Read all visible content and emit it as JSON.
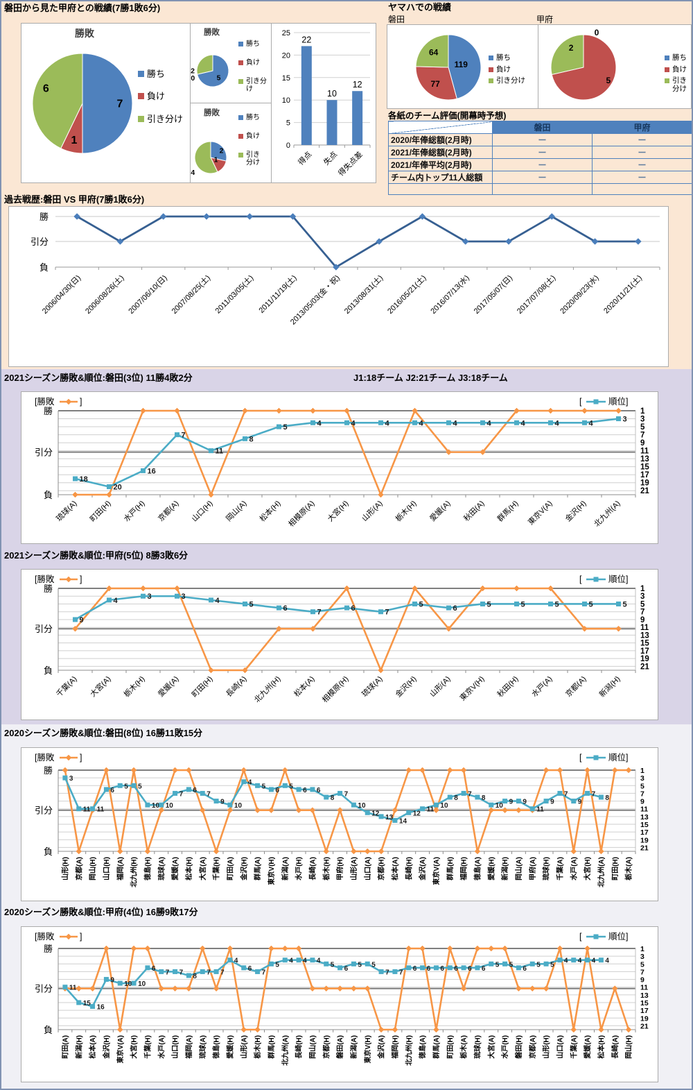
{
  "sections": {
    "h2h": {
      "title": "磐田から見た甲府との戦績(7勝1敗6分)"
    },
    "yamaha": {
      "title": "ヤマハでの戦績",
      "left_team": "磐田",
      "right_team": "甲府"
    },
    "eval_table": {
      "title": "各紙のチーム評価(開幕時予想)",
      "columns": [
        "磐田",
        "甲府"
      ],
      "rows": [
        {
          "label": "2020/年俸総額(2月時)",
          "values": [
            "ー",
            "ー"
          ]
        },
        {
          "label": "2021/年俸総額(2月時)",
          "values": [
            "ー",
            "ー"
          ]
        },
        {
          "label": "2021/年俸平均(2月時)",
          "values": [
            "ー",
            "ー"
          ]
        },
        {
          "label": "チーム内トップ11人総額",
          "values": [
            "ー",
            "ー"
          ]
        },
        {
          "label": "",
          "values": [
            "",
            ""
          ]
        }
      ]
    },
    "past": {
      "title": "過去戦歴:磐田 VS 甲府(7勝1敗6分)"
    },
    "iwata2021": {
      "title": "2021シーズン勝敗&順位:磐田(3位) 11勝4敗2分",
      "note": "J1:18チーム  J2:21チーム  J3:18チーム"
    },
    "kofu2021": {
      "title": "2021シーズン勝敗&順位:甲府(5位) 8勝3敗6分"
    },
    "iwata2020": {
      "title": "2020シーズン勝敗&順位:磐田(8位) 16勝11敗15分"
    },
    "kofu2020": {
      "title": "2020シーズン勝敗&順位:甲府(4位) 16勝9敗17分"
    }
  },
  "colors": {
    "win_blue": "#4F81BD",
    "loss_red": "#C0504D",
    "draw_green": "#9BBB59",
    "orange": "#F79646",
    "teal": "#4BACC6",
    "navy": "#376092",
    "navy_marker": "#4A7EBB",
    "peach_bg": "#FBE7D4",
    "lavender_bg": "#D9D4E7",
    "gray_bg": "#F0F0F5",
    "table_header": "#4F81BD"
  },
  "chart_data": [
    {
      "id": "h2h-pie-total",
      "type": "pie",
      "title": "勝敗",
      "slices": [
        {
          "label": "勝ち",
          "value": 7,
          "color": "#4F81BD"
        },
        {
          "label": "負け",
          "value": 1,
          "color": "#C0504D"
        },
        {
          "label": "引き分け",
          "value": 6,
          "color": "#9BBB59"
        }
      ]
    },
    {
      "id": "h2h-pie-home",
      "type": "pie",
      "title": "勝敗",
      "slices": [
        {
          "label": "勝ち",
          "value": 5,
          "color": "#4F81BD"
        },
        {
          "label": "負け",
          "value": 0,
          "color": "#C0504D"
        },
        {
          "label": "引き分け",
          "value": 2,
          "color": "#9BBB59"
        }
      ]
    },
    {
      "id": "h2h-pie-away",
      "type": "pie",
      "title": "勝敗",
      "slices": [
        {
          "label": "勝ち",
          "value": 2,
          "color": "#4F81BD"
        },
        {
          "label": "負け",
          "value": 1,
          "color": "#C0504D"
        },
        {
          "label": "引き分け",
          "value": 4,
          "color": "#9BBB59"
        }
      ]
    },
    {
      "id": "goals-bar",
      "type": "bar",
      "categories": [
        "得点",
        "失点",
        "得失点差"
      ],
      "values": [
        22,
        10,
        12
      ],
      "ylim": [
        0,
        25
      ],
      "ytick_step": 5,
      "bar_color": "#4F81BD"
    },
    {
      "id": "yamaha-iwata-pie",
      "type": "pie",
      "title": "",
      "slices": [
        {
          "label": "勝ち",
          "value": 119,
          "color": "#4F81BD"
        },
        {
          "label": "負け",
          "value": 77,
          "color": "#C0504D"
        },
        {
          "label": "引き分け",
          "value": 64,
          "color": "#9BBB59"
        }
      ]
    },
    {
      "id": "yamaha-kofu-pie",
      "type": "pie",
      "title": "",
      "slices": [
        {
          "label": "勝ち",
          "value": 0,
          "color": "#4F81BD"
        },
        {
          "label": "負け",
          "value": 5,
          "color": "#C0504D"
        },
        {
          "label": "引き分け",
          "value": 2,
          "color": "#9BBB59"
        }
      ]
    },
    {
      "id": "past-line",
      "type": "result_line",
      "y_labels": [
        "勝",
        "引分",
        "負"
      ],
      "categories": [
        "2006/04/30(日)",
        "2006/08/26(土)",
        "2007/06/10(日)",
        "2007/08/25(土)",
        "2011/03/05(土)",
        "2011/11/19(土)",
        "2013/05/03(金・祝)",
        "2013/08/31(土)",
        "2016/05/21(土)",
        "2016/07/13(水)",
        "2017/05/07(日)",
        "2017/07/08(土)",
        "2020/09/23(水)",
        "2020/11/21(土)"
      ],
      "results": [
        "W",
        "D",
        "W",
        "W",
        "W",
        "W",
        "L",
        "D",
        "W",
        "D",
        "D",
        "W",
        "D",
        "D"
      ]
    },
    {
      "id": "iwata-2021",
      "type": "combo",
      "legend": {
        "series": "勝敗",
        "rank": "順位"
      },
      "y_left": [
        "勝",
        "引分",
        "負"
      ],
      "rank_axis": {
        "min": 1,
        "max": 21,
        "tick_step": 2
      },
      "categories": [
        "琉球(A)",
        "町田(H)",
        "水戸(H)",
        "京都(A)",
        "山口(H)",
        "岡山(A)",
        "松本(H)",
        "相模原(A)",
        "大宮(H)",
        "山形(A)",
        "栃木(H)",
        "愛媛(A)",
        "秋田(A)",
        "群馬(H)",
        "東京V(A)",
        "金沢(H)",
        "北九州(A)"
      ],
      "results": [
        "L",
        "L",
        "W",
        "W",
        "L",
        "W",
        "W",
        "W",
        "W",
        "L",
        "W",
        "D",
        "D",
        "W",
        "W",
        "W",
        "W"
      ],
      "ranks": [
        18,
        20,
        16,
        7,
        11,
        8,
        5,
        4,
        4,
        4,
        4,
        4,
        4,
        4,
        4,
        4,
        3
      ]
    },
    {
      "id": "kofu-2021",
      "type": "combo",
      "legend": {
        "series": "勝敗",
        "rank": "順位"
      },
      "y_left": [
        "勝",
        "引分",
        "負"
      ],
      "rank_axis": {
        "min": 1,
        "max": 21,
        "tick_step": 2
      },
      "categories": [
        "千葉(A)",
        "大宮(A)",
        "栃木(H)",
        "愛媛(A)",
        "町田(H)",
        "長崎(A)",
        "北九州(H)",
        "松本(A)",
        "相模原(H)",
        "琉球(A)",
        "金沢(H)",
        "山形(A)",
        "東京V(H)",
        "秋田(H)",
        "水戸(A)",
        "京都(A)",
        "新潟(H)"
      ],
      "results": [
        "D",
        "W",
        "W",
        "W",
        "L",
        "L",
        "D",
        "D",
        "W",
        "L",
        "W",
        "D",
        "W",
        "W",
        "W",
        "D",
        "D"
      ],
      "ranks": [
        9,
        4,
        3,
        3,
        4,
        5,
        6,
        7,
        6,
        7,
        5,
        6,
        5,
        5,
        5,
        5,
        5
      ]
    },
    {
      "id": "iwata-2020",
      "type": "combo",
      "legend": {
        "series": "勝敗",
        "rank": "順位"
      },
      "y_left": [
        "勝",
        "引分",
        "負"
      ],
      "rank_axis": {
        "min": 1,
        "max": 21,
        "tick_step": 2
      },
      "categories": [
        "山形(H)",
        "京都(A)",
        "岡山(H)",
        "山口(H)",
        "福岡(A)",
        "北九州(H)",
        "徳島(H)",
        "琉球(A)",
        "愛媛(A)",
        "松本(H)",
        "大宮(A)",
        "千葉(H)",
        "町田(A)",
        "金沢(H)",
        "群馬(A)",
        "東京V(H)",
        "新潟(A)",
        "水戸(H)",
        "長崎(A)",
        "栃木(H)",
        "甲府(H)",
        "山形(A)",
        "山口(A)",
        "京都(H)",
        "松本(A)",
        "長崎(H)",
        "金沢(A)",
        "東京V(A)",
        "群馬(H)",
        "福岡(H)",
        "徳島(A)",
        "愛媛(H)",
        "新潟(H)",
        "岡山(A)",
        "甲府(A)",
        "琉球(H)",
        "千葉(A)",
        "水戸(A)",
        "大宮(H)",
        "北九州(A)",
        "町田(H)",
        "栃木(A)"
      ],
      "results": [
        "W",
        "L",
        "D",
        "W",
        "L",
        "W",
        "L",
        "D",
        "W",
        "W",
        "D",
        "L",
        "D",
        "W",
        "D",
        "D",
        "W",
        "D",
        "D",
        "L",
        "D",
        "L",
        "L",
        "L",
        "D",
        "W",
        "W",
        "D",
        "W",
        "W",
        "L",
        "D",
        "D",
        "D",
        "D",
        "W",
        "W",
        "L",
        "W",
        "L",
        "W",
        "W"
      ],
      "ranks": [
        3,
        11,
        11,
        6,
        5,
        5,
        10,
        10,
        7,
        6,
        7,
        9,
        10,
        4,
        5,
        6,
        5,
        6,
        6,
        8,
        7,
        10,
        12,
        13,
        14,
        12,
        11,
        10,
        8,
        7,
        8,
        10,
        9,
        9,
        11,
        9,
        7,
        9,
        7,
        8,
        null,
        null
      ]
    },
    {
      "id": "kofu-2020",
      "type": "combo",
      "legend": {
        "series": "勝敗",
        "rank": "順位"
      },
      "y_left": [
        "勝",
        "引分",
        "負"
      ],
      "rank_axis": {
        "min": 1,
        "max": 21,
        "tick_step": 2
      },
      "categories": [
        "町田(A)",
        "新潟(H)",
        "松本(A)",
        "金沢(H)",
        "東京V(A)",
        "大宮(H)",
        "千葉(H)",
        "水戸(A)",
        "山口(H)",
        "福岡(A)",
        "琉球(A)",
        "徳島(H)",
        "愛媛(H)",
        "山形(A)",
        "栃木(H)",
        "群馬(H)",
        "北九州(A)",
        "長崎(H)",
        "岡山(A)",
        "京都(H)",
        "磐田(A)",
        "新潟(A)",
        "東京V(H)",
        "金沢(A)",
        "福岡(H)",
        "北九州(H)",
        "徳島(A)",
        "群馬(A)",
        "町田(H)",
        "栃木(A)",
        "琉球(H)",
        "大宮(A)",
        "水戸(H)",
        "磐田(H)",
        "京都(A)",
        "山形(H)",
        "山口(A)",
        "千葉(A)",
        "愛媛(A)",
        "松本(H)",
        "長崎(A)",
        "岡山(H)"
      ],
      "results": [
        "D",
        "D",
        "D",
        "W",
        "L",
        "W",
        "W",
        "D",
        "D",
        "D",
        "W",
        "D",
        "W",
        "L",
        "L",
        "W",
        "W",
        "W",
        "D",
        "D",
        "D",
        "D",
        "D",
        "L",
        "L",
        "W",
        "W",
        "L",
        "W",
        "D",
        "W",
        "W",
        "W",
        "D",
        "D",
        "D",
        "W",
        "L",
        "W",
        "L",
        "D",
        "L"
      ],
      "ranks": [
        11,
        15,
        16,
        9,
        10,
        10,
        6,
        7,
        7,
        8,
        7,
        7,
        4,
        6,
        7,
        5,
        4,
        4,
        4,
        5,
        6,
        5,
        5,
        7,
        7,
        6,
        6,
        6,
        6,
        6,
        6,
        5,
        5,
        6,
        5,
        5,
        4,
        4,
        4,
        4,
        null,
        null
      ]
    }
  ]
}
